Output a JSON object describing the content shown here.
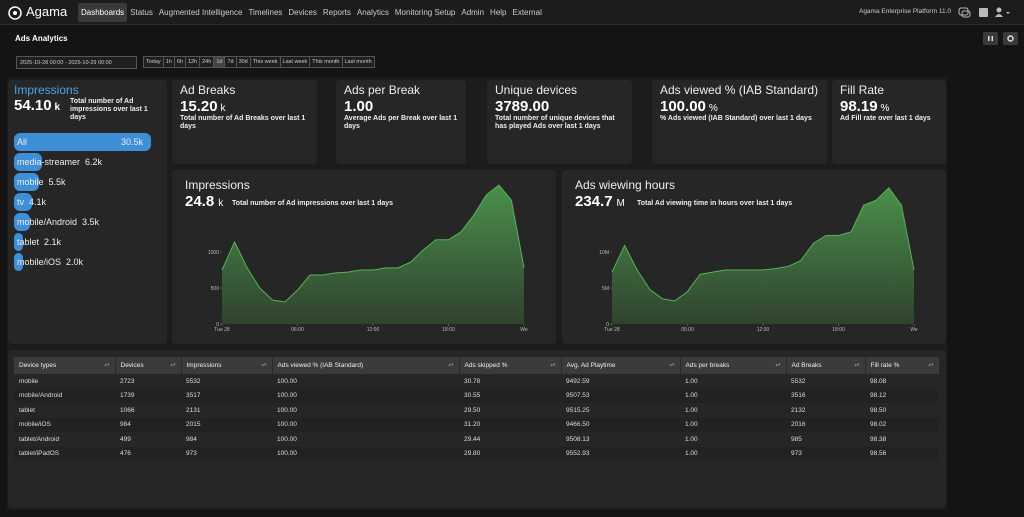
{
  "nav": {
    "logo": "Agama",
    "menu": [
      "Dashboards",
      "Status",
      "Augmented Intelligence",
      "Timelines",
      "Devices",
      "Reports",
      "Analytics",
      "Monitoring Setup",
      "Admin",
      "Help",
      "External"
    ],
    "product": "Agama Enterprise Platform 11.0"
  },
  "page_title": "Ads Analytics",
  "date_range": "2025-10-28 00:00 - 2025-10-29 00:00",
  "time_buttons": [
    "Today",
    "1h",
    "6h",
    "12h",
    "24h",
    "1d",
    "7d",
    "30d",
    "This week",
    "Last week",
    "This month",
    "Last month"
  ],
  "impressions_list": {
    "title": "Impressions",
    "value": "54.10",
    "unit": "k",
    "description": "Total number of Ad impressions over last 1 days",
    "chart": {
      "type": "bar",
      "color": "#3f8fd8",
      "categories": [
        "All",
        "media-streamer",
        "mobile",
        "tv",
        "mobile/Android",
        "tablet",
        "mobile/iOS"
      ],
      "values": [
        30500,
        6200,
        5500,
        4100,
        3500,
        2100,
        2000
      ],
      "value_labels": [
        "30.5k",
        "6.2k",
        "5.5k",
        "4.1k",
        "3.5k",
        "2.1k",
        "2.0k"
      ]
    }
  },
  "stats": [
    {
      "title": "Ad Breaks",
      "value": "15.20",
      "unit": "k",
      "description": "Total number of Ad Breaks over last 1 days"
    },
    {
      "title": "Ads per Break",
      "value": "1.00",
      "description": "Average Ads per Break over last 1 days"
    },
    {
      "title": "Unique devices",
      "value": "3789.00",
      "description": "Total number of unique devices that has played Ads over last 1 days"
    },
    {
      "title": "Ads viewed % (IAB Standard)",
      "value": "100.00",
      "unit": "%",
      "description": "% Ads viewed (IAB Standard) over last 1 days"
    },
    {
      "title": "Fill Rate",
      "value": "98.19",
      "unit": "%",
      "description": "Ad Fill rate over last 1 days"
    }
  ],
  "charts": [
    {
      "type": "area",
      "title": "Impressions",
      "value": "24.8",
      "unit": "k",
      "description": "Total number of Ad impressions over last 1 days",
      "color": "#56b356",
      "x": [
        0,
        1,
        2,
        3,
        4,
        5,
        6,
        7,
        8,
        9,
        10,
        11,
        12,
        13,
        14,
        15,
        16,
        17,
        18,
        19,
        20,
        21,
        22,
        23,
        24
      ],
      "values": [
        750,
        1140,
        780,
        500,
        333,
        306,
        470,
        680,
        680,
        710,
        720,
        750,
        750,
        780,
        780,
        860,
        1030,
        1170,
        1170,
        1280,
        1510,
        1790,
        1930,
        1720,
        780
      ],
      "xlim": [
        0,
        24
      ],
      "ylim": [
        0,
        2000
      ],
      "xticks": [
        {
          "value": 0,
          "label": "Tue 28"
        },
        {
          "value": 6,
          "label": "06:00"
        },
        {
          "value": 12,
          "label": "12:00"
        },
        {
          "value": 18,
          "label": "18:00"
        },
        {
          "value": 24,
          "label": "We"
        }
      ],
      "yticks": [
        0,
        500,
        1000
      ]
    },
    {
      "type": "area",
      "title": "Ads wiewing hours",
      "value": "234.7",
      "unit": "M",
      "description": "Total Ad viewing time in hours over last 1 days",
      "color": "#56b356",
      "x": [
        0,
        1,
        2,
        3,
        4,
        5,
        6,
        7,
        8,
        9,
        10,
        11,
        12,
        13,
        14,
        15,
        16,
        17,
        18,
        19,
        20,
        21,
        22,
        23,
        24
      ],
      "values": [
        7200000,
        10900000,
        7500000,
        4800000,
        3500000,
        3200000,
        4500000,
        6900000,
        7200000,
        7500000,
        7500000,
        7500000,
        7500000,
        7700000,
        8000000,
        8800000,
        11200000,
        12300000,
        12300000,
        12800000,
        16500000,
        17200000,
        18900000,
        16500000,
        7500000
      ],
      "xlim": [
        0,
        24
      ],
      "ylim": [
        0,
        20000000
      ],
      "xticks": [
        {
          "value": 0,
          "label": "Tue 28"
        },
        {
          "value": 6,
          "label": "06:00"
        },
        {
          "value": 12,
          "label": "12:00"
        },
        {
          "value": 18,
          "label": "18:00"
        },
        {
          "value": 24,
          "label": "We"
        }
      ],
      "yticks": [
        0,
        {
          "value": 5000000,
          "label": "5M"
        },
        {
          "value": 10000000,
          "label": "10M"
        }
      ]
    }
  ],
  "table": {
    "columns": [
      "Device types",
      "Devices",
      "Impressions",
      "Ads viewed % (IAB Standard)",
      "Ads skipped %",
      "Avg. Ad Playtime",
      "Ads per breaks",
      "Ad Breaks",
      "Fill rate %"
    ],
    "rows": [
      [
        "mobile",
        "2723",
        "5532",
        "100.00",
        "30.78",
        "9492.59",
        "1.00",
        "5532",
        "98.08"
      ],
      [
        "mobile/Android",
        "1739",
        "3517",
        "100.00",
        "30.55",
        "9507.53",
        "1.00",
        "3516",
        "98.12"
      ],
      [
        "tablet",
        "1066",
        "2131",
        "100.00",
        "29.50",
        "9515.25",
        "1.00",
        "2132",
        "98.50"
      ],
      [
        "mobile/iOS",
        "984",
        "2015",
        "100.00",
        "31.20",
        "9466.50",
        "1.00",
        "2016",
        "98.02"
      ],
      [
        "tablet/Android",
        "499",
        "984",
        "100.00",
        "29.44",
        "9508.13",
        "1.00",
        "985",
        "98.38"
      ],
      [
        "tablet/iPadOS",
        "476",
        "973",
        "100.00",
        "29.80",
        "9552.93",
        "1.00",
        "973",
        "98.56"
      ]
    ]
  }
}
